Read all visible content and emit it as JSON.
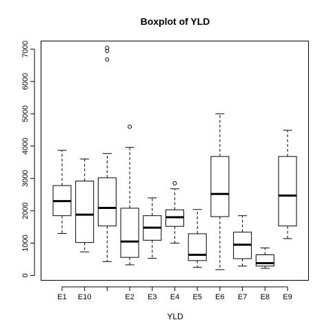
{
  "chart_data": {
    "type": "box",
    "title": "Boxplot of YLD",
    "xlabel": "YLD",
    "ylabel": "",
    "ylim": [
      -150,
      7250
    ],
    "yticks": [
      0,
      1000,
      2000,
      3000,
      4000,
      5000,
      6000,
      7000
    ],
    "grid": false,
    "legend": "none",
    "categories": [
      "E1",
      "E10",
      "",
      "E2",
      "E3",
      "E4",
      "E5",
      "E6",
      "E7",
      "E8",
      "E9"
    ],
    "boxes": [
      {
        "label": "E1",
        "whisker_low": 1300,
        "q1": 1850,
        "median": 2300,
        "q3": 2780,
        "whisker_high": 3870,
        "outliers": []
      },
      {
        "label": "E10",
        "whisker_low": 730,
        "q1": 1020,
        "median": 1880,
        "q3": 2920,
        "whisker_high": 3600,
        "outliers": []
      },
      {
        "label": "",
        "whisker_low": 430,
        "q1": 1530,
        "median": 2090,
        "q3": 3020,
        "whisker_high": 3770,
        "outliers": [
          6680,
          6940,
          7040
        ]
      },
      {
        "label": "E2",
        "whisker_low": 330,
        "q1": 560,
        "median": 1050,
        "q3": 2080,
        "whisker_high": 3960,
        "outliers": [
          4600
        ]
      },
      {
        "label": "E3",
        "whisker_low": 530,
        "q1": 1090,
        "median": 1480,
        "q3": 1850,
        "whisker_high": 2400,
        "outliers": []
      },
      {
        "label": "E4",
        "whisker_low": 1000,
        "q1": 1520,
        "median": 1800,
        "q3": 2030,
        "whisker_high": 2680,
        "outliers": [
          2850
        ]
      },
      {
        "label": "E5",
        "whisker_low": 250,
        "q1": 460,
        "median": 640,
        "q3": 1290,
        "whisker_high": 2040,
        "outliers": []
      },
      {
        "label": "E6",
        "whisker_low": 180,
        "q1": 1820,
        "median": 2520,
        "q3": 3680,
        "whisker_high": 5000,
        "outliers": []
      },
      {
        "label": "E7",
        "whisker_low": 290,
        "q1": 520,
        "median": 950,
        "q3": 1340,
        "whisker_high": 1850,
        "outliers": []
      },
      {
        "label": "E8",
        "whisker_low": 220,
        "q1": 290,
        "median": 380,
        "q3": 640,
        "whisker_high": 850,
        "outliers": []
      },
      {
        "label": "E9",
        "whisker_low": 1140,
        "q1": 1530,
        "median": 2470,
        "q3": 3680,
        "whisker_high": 4490,
        "outliers": []
      }
    ]
  }
}
